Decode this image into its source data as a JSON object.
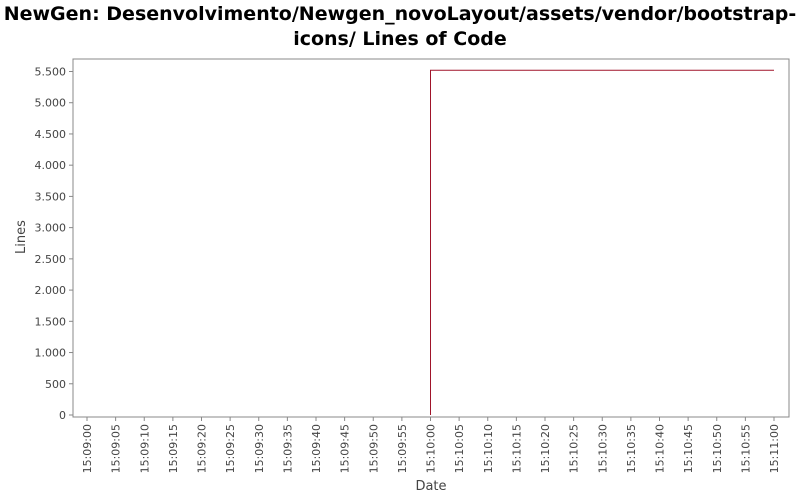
{
  "chart_data": {
    "type": "line",
    "title_lines": [
      "NewGen: Desenvolvimento/Newgen_novoLayout/assets/vendor/bootstrap-",
      "icons/ Lines of Code"
    ],
    "xlabel": "Date",
    "ylabel": "Lines",
    "ylim": [
      0,
      5700
    ],
    "xlim": [
      "15:09:00",
      "15:11:00"
    ],
    "y_ticks": [
      {
        "value": 0,
        "label": "0"
      },
      {
        "value": 500,
        "label": "500"
      },
      {
        "value": 1000,
        "label": "1.000"
      },
      {
        "value": 1500,
        "label": "1.500"
      },
      {
        "value": 2000,
        "label": "2.000"
      },
      {
        "value": 2500,
        "label": "2.500"
      },
      {
        "value": 3000,
        "label": "3.000"
      },
      {
        "value": 3500,
        "label": "3.500"
      },
      {
        "value": 4000,
        "label": "4.000"
      },
      {
        "value": 4500,
        "label": "4.500"
      },
      {
        "value": 5000,
        "label": "5.000"
      },
      {
        "value": 5500,
        "label": "5.500"
      }
    ],
    "x_ticks": [
      "15:09:00",
      "15:09:05",
      "15:09:10",
      "15:09:15",
      "15:09:20",
      "15:09:25",
      "15:09:30",
      "15:09:35",
      "15:09:40",
      "15:09:45",
      "15:09:50",
      "15:09:55",
      "15:10:00",
      "15:10:05",
      "15:10:10",
      "15:10:15",
      "15:10:20",
      "15:10:25",
      "15:10:30",
      "15:10:35",
      "15:10:40",
      "15:10:45",
      "15:10:50",
      "15:10:55",
      "15:11:00"
    ],
    "grid": false,
    "series": [
      {
        "color": "#a0142a",
        "step": true,
        "points": [
          {
            "x": "15:10:00",
            "y": 0
          },
          {
            "x": "15:10:00",
            "y": 5520
          },
          {
            "x": "15:11:00",
            "y": 5520
          }
        ]
      }
    ]
  }
}
